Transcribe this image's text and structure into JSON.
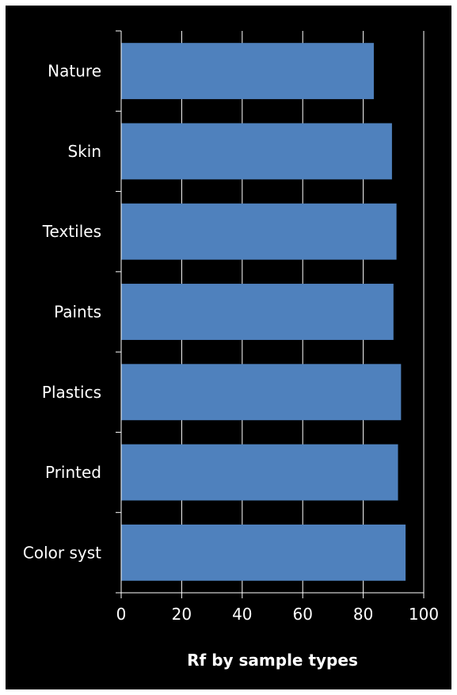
{
  "chart_data": {
    "type": "bar",
    "orientation": "horizontal",
    "categories": [
      "Nature",
      "Skin",
      "Textiles",
      "Paints",
      "Plastics",
      "Printed",
      "Color syst"
    ],
    "values": [
      83.5,
      89.5,
      91,
      90,
      92.5,
      91.5,
      94
    ],
    "title": "",
    "xlabel": "Rf by sample types",
    "ylabel": "",
    "xlim": [
      0,
      100
    ],
    "x_ticks": [
      "0",
      "20",
      "40",
      "60",
      "80",
      "100"
    ],
    "grid": "vertical",
    "legend": "none",
    "colors": {
      "background": "#000000",
      "bar": "#4f81bd",
      "text": "#ffffff",
      "grid": "#ffffff"
    }
  }
}
